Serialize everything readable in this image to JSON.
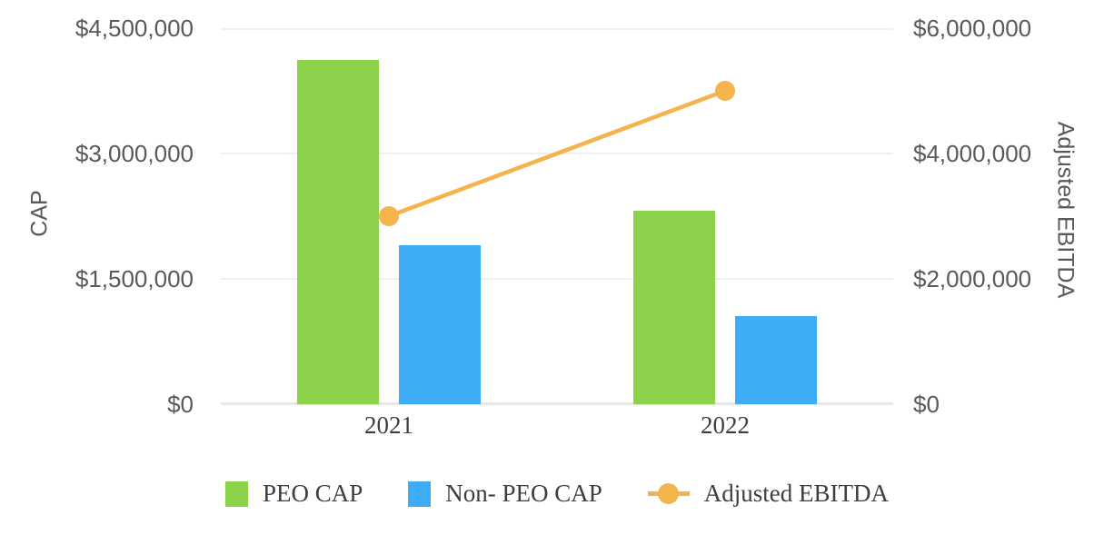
{
  "chart_data": {
    "type": "combo-bar-line",
    "categories": [
      "2021",
      "2022"
    ],
    "series": [
      {
        "name": "PEO CAP",
        "type": "bar",
        "axis": "left",
        "color": "#8DD24B",
        "values": [
          4120000,
          2320000
        ]
      },
      {
        "name": "Non- PEO CAP",
        "type": "bar",
        "axis": "left",
        "color": "#3FACF7",
        "values": [
          1900000,
          1050000
        ]
      },
      {
        "name": "Adjusted EBITDA",
        "type": "line",
        "axis": "right",
        "color": "#F5B34E",
        "values": [
          3000000,
          5000000
        ]
      }
    ],
    "axes": {
      "left": {
        "title": "CAP",
        "min": 0,
        "max": 4500000,
        "ticks": [
          0,
          1500000,
          3000000,
          4500000
        ],
        "tick_labels": [
          "$0",
          "$1,500,000",
          "$3,000,000",
          "$4,500,000"
        ]
      },
      "right": {
        "title": "Adjusted EBITDA",
        "min": 0,
        "max": 6000000,
        "ticks": [
          0,
          2000000,
          4000000,
          6000000
        ],
        "tick_labels": [
          "$0",
          "$2,000,000",
          "$4,000,000",
          "$6,000,000"
        ]
      }
    },
    "grid": true,
    "legend_position": "bottom",
    "styles": {
      "gridline_color": "#EFEFEF",
      "baseline_color": "#E7E7E7",
      "tick_text_color": "#58595B",
      "category_text_color": "#3E3E3E",
      "background": "#FFFFFF"
    }
  }
}
